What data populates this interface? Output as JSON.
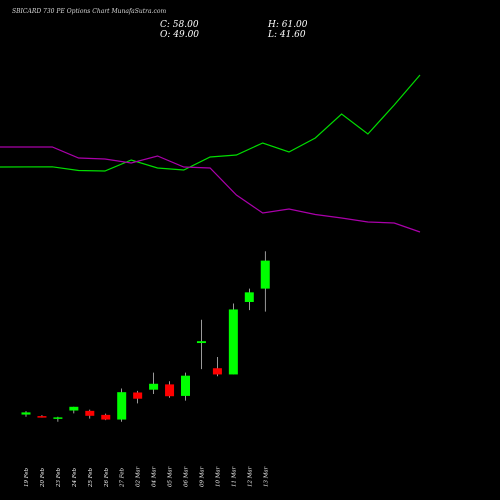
{
  "header": {
    "title": "SBICARD 730 PE Options Chart MunafaSutra.com",
    "close": "C: 58.00",
    "open": "O: 49.00",
    "high": "H: 61.00",
    "low": "L: 41.60"
  },
  "colors": {
    "background": "#000000",
    "bull": "#00ff00",
    "bear": "#ff0000",
    "line_green": "#00dd00",
    "line_purple": "#aa00aa",
    "text": "#ffffff"
  },
  "chart_data": {
    "type": "candlestick",
    "price_axis_shown": false,
    "grid": false,
    "categories": [
      "19 Feb",
      "20 Feb",
      "23 Feb",
      "24 Feb",
      "25 Feb",
      "26 Feb",
      "27 Feb",
      "02 Mar",
      "04 Mar",
      "05 Mar",
      "06 Mar",
      "09 Mar",
      "10 Mar",
      "11 Mar",
      "12 Mar",
      "13 Mar"
    ],
    "candles": [
      {
        "o": 8.5,
        "h": 9.6,
        "l": 7.8,
        "c": 9.2
      },
      {
        "o": 8.0,
        "h": 8.3,
        "l": 7.5,
        "c": 7.8
      },
      {
        "o": 7.2,
        "h": 7.8,
        "l": 6.2,
        "c": 7.6
      },
      {
        "o": 9.8,
        "h": 11.0,
        "l": 8.9,
        "c": 11.0
      },
      {
        "o": 9.7,
        "h": 10.1,
        "l": 7.2,
        "c": 8.1
      },
      {
        "o": 8.4,
        "h": 8.8,
        "l": 6.7,
        "c": 6.9
      },
      {
        "o": 6.9,
        "h": 16.9,
        "l": 6.2,
        "c": 15.7
      },
      {
        "o": 15.6,
        "h": 16.1,
        "l": 12.1,
        "c": 13.6
      },
      {
        "o": 16.5,
        "h": 22.0,
        "l": 15.1,
        "c": 18.4
      },
      {
        "o": 18.2,
        "h": 19.2,
        "l": 13.9,
        "c": 14.4
      },
      {
        "o": 14.5,
        "h": 22.0,
        "l": 13.0,
        "c": 21.0
      },
      {
        "o": 31.5,
        "h": 39.0,
        "l": 23.1,
        "c": 32.1
      },
      {
        "o": 23.4,
        "h": 27.0,
        "l": 20.8,
        "c": 21.4
      },
      {
        "o": 21.4,
        "h": 44.2,
        "l": 21.4,
        "c": 42.3
      },
      {
        "o": 44.7,
        "h": 49.0,
        "l": 42.1,
        "c": 47.8
      },
      {
        "o": 49.0,
        "h": 61.0,
        "l": 41.6,
        "c": 58.0
      }
    ],
    "overlay_lines": [
      {
        "color": "green",
        "values": [
          167.0,
          166.8,
          170.5,
          171.0,
          160.0,
          168.0,
          170.0,
          157.0,
          155.0,
          143.0,
          152.0,
          138.0,
          114.0,
          134.0,
          105.0,
          75.0
        ]
      },
      {
        "color": "purple",
        "values": [
          147.0,
          147.0,
          158.0,
          159.0,
          163.0,
          156.0,
          167.0,
          168.0,
          195.0,
          213.0,
          209.0,
          214.5,
          218.0,
          222.0,
          223.0,
          232.0
        ]
      }
    ]
  }
}
